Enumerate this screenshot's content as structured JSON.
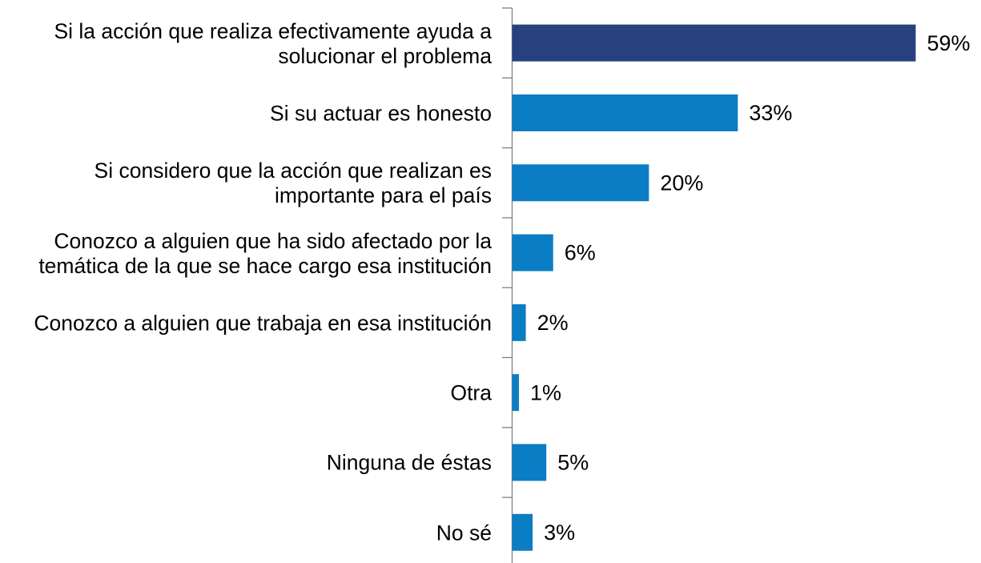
{
  "chart_data": {
    "type": "bar",
    "orientation": "horizontal",
    "categories": [
      "Si la acción que realiza efectivamente ayuda a solucionar el problema",
      "Si su actuar es honesto",
      "Si considero que la acción que realizan es importante para el país",
      "Conozco a alguien que ha sido afectado por la temática de la que se hace cargo esa institución",
      "Conozco a alguien que trabaja en esa institución",
      "Otra",
      "Ninguna de éstas",
      "No sé"
    ],
    "values": [
      59,
      33,
      20,
      6,
      2,
      1,
      5,
      3
    ],
    "value_labels": [
      "59%",
      "33%",
      "20%",
      "6%",
      "2%",
      "1%",
      "5%",
      "3%"
    ],
    "colors": [
      "#27417f",
      "#0b7dc4",
      "#0b7dc4",
      "#0b7dc4",
      "#0b7dc4",
      "#0b7dc4",
      "#0b7dc4",
      "#0b7dc4"
    ],
    "xlim": [
      0,
      60
    ]
  }
}
